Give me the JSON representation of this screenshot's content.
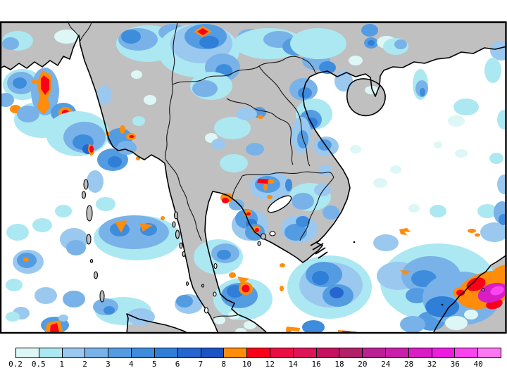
{
  "colorbar": {
    "tick_labels": [
      "0.2",
      "0.5",
      "1",
      "2",
      "3",
      "4",
      "5",
      "6",
      "7",
      "8",
      "10",
      "12",
      "14",
      "16",
      "18",
      "20",
      "24",
      "28",
      "32",
      "36",
      "40"
    ],
    "segment_colors": [
      "#DCF7F5",
      "#ACE8F2",
      "#9AC8EF",
      "#78B2E8",
      "#549CE2",
      "#3E8CDC",
      "#2F7ED8",
      "#2566D0",
      "#1C53C4",
      "#FF8C0A",
      "#FA0019",
      "#EB0E44",
      "#DC1458",
      "#C81060",
      "#B12069",
      "#BC1E94",
      "#CA1EAC",
      "#DA1CC6",
      "#EE1CE0",
      "#FA44EE",
      "#FC78F2"
    ],
    "border_color": "#000000",
    "label_color": "#000000"
  },
  "map": {
    "sea_color": "#FFFFFF",
    "land_color": "#C0C0C0",
    "coastline_color": "#000000",
    "frame_color": "#000000"
  }
}
